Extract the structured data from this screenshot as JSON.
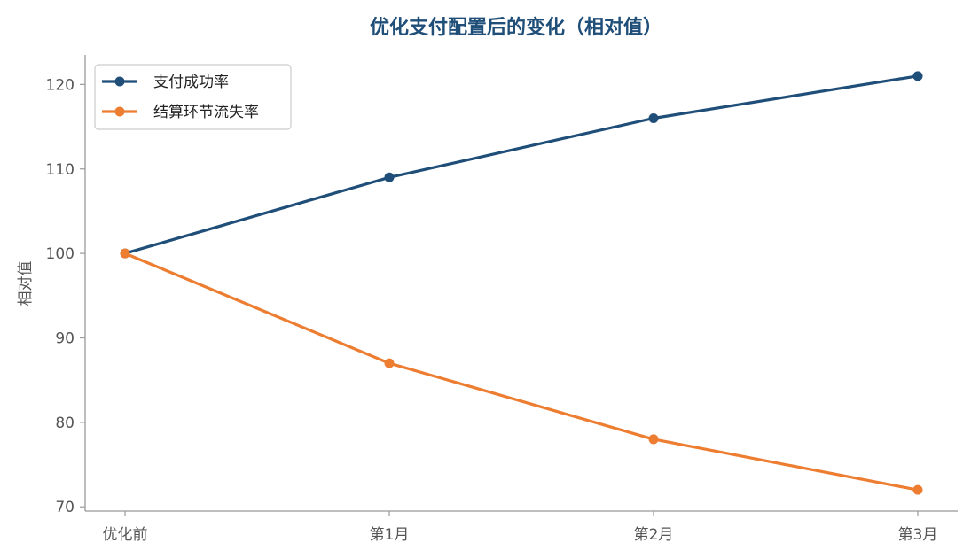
{
  "chart_data": {
    "type": "line",
    "title": "优化支付配置后的变化（相对值）",
    "xlabel": "",
    "ylabel": "相对值",
    "categories": [
      "优化前",
      "第1月",
      "第2月",
      "第3月"
    ],
    "ylim": [
      69.5,
      123.5
    ],
    "yticks": [
      70,
      80,
      90,
      100,
      110,
      120
    ],
    "grid": false,
    "legend_position": "top-left",
    "series": [
      {
        "name": "支付成功率",
        "values": [
          100,
          109,
          116,
          121
        ],
        "color": "#1f4e79"
      },
      {
        "name": "结算环节流失率",
        "values": [
          100,
          87,
          78,
          72
        ],
        "color": "#ed7d31"
      }
    ]
  },
  "colors": {
    "title": "#1f4e79",
    "axis": "#999999",
    "tick_label": "#555555"
  }
}
